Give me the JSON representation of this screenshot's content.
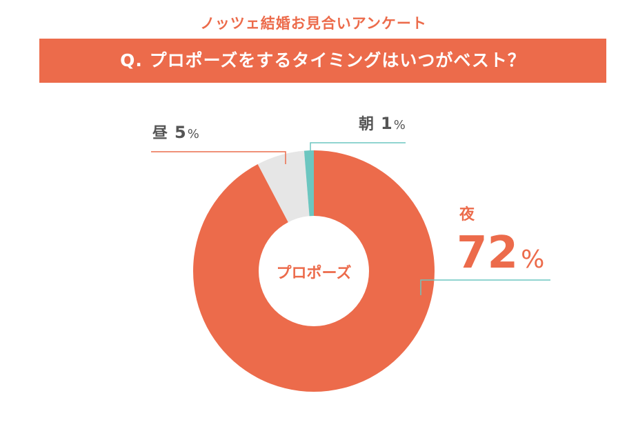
{
  "header": {
    "subtitle": "ノッツェ結婚お見合いアンケート",
    "question": "Q. プロポーズをするタイミングはいつがベスト？"
  },
  "chart_data": {
    "type": "pie",
    "center_label": "プロポーズ",
    "slices": [
      {
        "label": "夜",
        "value": 72,
        "value_text": "72",
        "unit": "%",
        "color": "#ec6b4b"
      },
      {
        "label": "昼",
        "value": 5,
        "value_text": "5",
        "unit": "%",
        "color": "#e6e6e6"
      },
      {
        "label": "朝",
        "value": 1,
        "value_text": "1",
        "unit": "%",
        "color": "#6cc6c0"
      }
    ]
  },
  "colors": {
    "accent": "#ec6b4b",
    "muted_slice": "#e6e6e6",
    "teal": "#6cc6c0",
    "label_gray": "#555555"
  }
}
